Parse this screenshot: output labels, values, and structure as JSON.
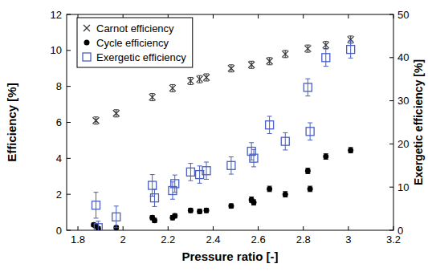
{
  "chart_data": {
    "type": "scatter",
    "x_label": "Pressure ratio [-]",
    "y_label": "Efficiency [%]",
    "y2_label": "Exergetic efficiency [%]",
    "xlim": [
      1.75,
      3.2
    ],
    "xticks": [
      1.8,
      2,
      2.2,
      2.4,
      2.6,
      2.8,
      3,
      3.2
    ],
    "ylim": [
      0,
      12
    ],
    "yticks": [
      0,
      2,
      4,
      6,
      8,
      10,
      12
    ],
    "y2lim": [
      0,
      50
    ],
    "y2ticks": [
      0,
      10,
      20,
      30,
      40,
      50
    ],
    "legend": "top-left",
    "grid": false,
    "series": [
      {
        "name": "Carnot efficiency",
        "color": "#333333",
        "marker": "x",
        "x": [
          1.88,
          1.97,
          2.13,
          2.22,
          2.3,
          2.34,
          2.37,
          2.48,
          2.57,
          2.65,
          2.72,
          2.82,
          2.9,
          3.01
        ],
        "values": [
          6.1,
          6.5,
          7.4,
          7.9,
          8.3,
          8.4,
          8.5,
          9.0,
          9.2,
          9.4,
          9.8,
          10.1,
          10.3,
          10.6
        ],
        "errors": [
          0.2,
          0.2,
          0.2,
          0.2,
          0.2,
          0.2,
          0.2,
          0.2,
          0.2,
          0.2,
          0.2,
          0.2,
          0.2,
          0.2
        ]
      },
      {
        "name": "Cycle efficiency",
        "color": "#000000",
        "marker": "circle",
        "x": [
          1.87,
          1.88,
          1.89,
          1.97,
          2.13,
          2.14,
          2.22,
          2.23,
          2.3,
          2.34,
          2.37,
          2.48,
          2.57,
          2.58,
          2.65,
          2.72,
          2.82,
          2.83,
          2.9,
          3.01
        ],
        "values": [
          0.3,
          0.25,
          0.1,
          0.15,
          0.7,
          0.55,
          0.7,
          0.8,
          1.1,
          1.05,
          1.1,
          1.35,
          1.7,
          1.55,
          2.3,
          2.0,
          3.3,
          2.3,
          4.1,
          4.45
        ],
        "errors": [
          0.1,
          0.1,
          0.1,
          0.1,
          0.12,
          0.12,
          0.12,
          0.12,
          0.12,
          0.12,
          0.12,
          0.12,
          0.15,
          0.15,
          0.15,
          0.15,
          0.15,
          0.15,
          0.15,
          0.15
        ]
      },
      {
        "name": "Exergetic efficiency",
        "color": "#4a5fc1",
        "marker": "square",
        "axis": "y2",
        "x": [
          1.88,
          1.89,
          1.97,
          2.13,
          2.14,
          2.22,
          2.23,
          2.3,
          2.34,
          2.37,
          2.48,
          2.57,
          2.58,
          2.65,
          2.72,
          2.82,
          2.83,
          2.9,
          3.01
        ],
        "values": [
          5.8,
          0.6,
          3.1,
          10.4,
          7.5,
          9.2,
          10.8,
          13.5,
          12.9,
          13.8,
          15.0,
          18.3,
          16.7,
          24.4,
          20.6,
          33.1,
          22.9,
          40.0,
          41.9
        ],
        "errors": [
          3.0,
          1.5,
          2.5,
          2.5,
          2.0,
          2.0,
          2.0,
          2.0,
          2.0,
          2.0,
          2.0,
          2.0,
          2.0,
          2.0,
          2.0,
          2.0,
          2.0,
          2.0,
          2.0
        ]
      }
    ]
  }
}
